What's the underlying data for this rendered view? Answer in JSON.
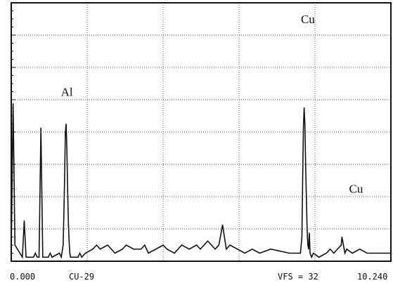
{
  "chart_data": {
    "type": "line",
    "title": "",
    "xlabel": "",
    "ylabel": "",
    "xlim": [
      0.0,
      10.24
    ],
    "ylim": [
      0,
      32
    ],
    "grid": true,
    "x_label_left": "0.000",
    "x_label_right": "10.240",
    "sample_label": "CU-29",
    "scale_label": "VFS = 32",
    "series": [
      {
        "x": [
          0.0,
          0.05,
          0.1,
          0.3,
          0.35,
          0.4,
          0.6,
          0.65,
          0.7,
          0.75,
          0.8,
          0.85,
          1.0,
          1.05,
          1.1,
          1.3,
          1.35,
          1.4,
          1.42,
          1.44,
          1.46,
          1.48,
          1.5,
          1.52,
          1.54,
          1.56,
          1.58,
          1.6,
          1.62,
          1.64,
          1.8,
          1.85,
          1.9,
          2.0,
          2.2,
          2.3,
          2.4,
          2.6,
          2.7,
          2.8,
          3.0,
          3.1,
          3.3,
          3.5,
          3.6,
          3.7,
          3.9,
          4.1,
          4.2,
          4.4,
          4.6,
          4.8,
          5.0,
          5.1,
          5.3,
          5.5,
          5.6,
          5.7,
          5.8,
          5.9,
          6.1,
          6.3,
          6.5,
          6.7,
          7.0,
          7.5,
          7.8,
          7.84,
          7.86,
          7.88,
          7.9,
          7.92,
          7.94,
          7.96,
          7.98,
          8.0,
          8.02,
          8.04,
          8.06,
          8.1,
          8.15,
          8.3,
          8.5,
          8.6,
          8.7,
          8.8,
          8.9,
          8.92,
          8.94,
          8.96,
          8.98,
          9.0,
          9.05,
          9.2,
          9.4,
          9.6,
          9.8,
          10.0,
          10.2,
          10.24
        ],
        "y": [
          1.5,
          19.5,
          2.0,
          0.5,
          5.0,
          0.5,
          0.5,
          1.0,
          0.5,
          0.5,
          16.5,
          0.5,
          0.5,
          1.0,
          0.5,
          1.0,
          0.5,
          2.0,
          6.0,
          10.5,
          16.0,
          17.0,
          14.0,
          9.0,
          5.0,
          2.5,
          1.0,
          0.5,
          0.5,
          0.5,
          0.5,
          1.0,
          0.5,
          1.0,
          1.5,
          2.0,
          1.5,
          2.0,
          1.5,
          1.0,
          1.5,
          2.0,
          1.5,
          1.5,
          2.0,
          1.0,
          1.5,
          2.0,
          1.5,
          1.0,
          2.0,
          1.5,
          2.0,
          1.5,
          2.5,
          1.5,
          2.0,
          4.5,
          1.5,
          2.0,
          1.5,
          1.0,
          1.5,
          1.0,
          1.5,
          1.0,
          1.0,
          3.0,
          10.0,
          16.5,
          19.0,
          17.0,
          12.0,
          8.0,
          4.0,
          2.0,
          1.5,
          3.5,
          1.0,
          0.5,
          1.0,
          0.5,
          1.0,
          1.5,
          1.0,
          1.5,
          2.0,
          3.0,
          2.5,
          2.0,
          1.5,
          1.0,
          1.5,
          1.0,
          1.5,
          1.0,
          1.0,
          1.0,
          1.0,
          1.0
        ]
      }
    ],
    "annotations": [
      {
        "text": "Al",
        "x": 1.5,
        "y": 20.5
      },
      {
        "text": "Cu",
        "x": 8.0,
        "y": 29.5
      },
      {
        "text": "Cu",
        "x": 9.3,
        "y": 8.5
      }
    ]
  }
}
